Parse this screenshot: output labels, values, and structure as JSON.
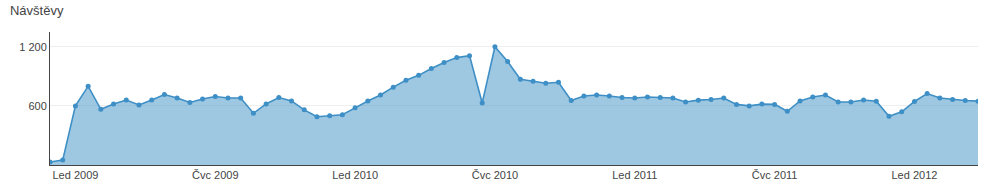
{
  "chart_data": {
    "type": "area",
    "title": "Návštěvy",
    "categories": [
      null,
      null,
      "Led 2009",
      null,
      null,
      null,
      null,
      null,
      null,
      null,
      null,
      null,
      null,
      "Čvc 2009",
      null,
      null,
      null,
      null,
      null,
      null,
      null,
      null,
      null,
      null,
      "Led 2010",
      null,
      null,
      null,
      null,
      null,
      null,
      null,
      null,
      null,
      null,
      "Čvc 2010",
      null,
      null,
      null,
      null,
      null,
      null,
      null,
      null,
      null,
      null,
      "Led 2011",
      null,
      null,
      null,
      null,
      null,
      null,
      null,
      null,
      null,
      null,
      "Čvc 2011",
      null,
      null,
      null,
      null,
      null,
      null,
      null,
      null,
      null,
      null,
      "Led 2012",
      null,
      null,
      null,
      null,
      null
    ],
    "values": [
      30,
      50,
      600,
      800,
      565,
      620,
      660,
      610,
      660,
      715,
      680,
      635,
      670,
      695,
      680,
      680,
      525,
      620,
      685,
      650,
      560,
      490,
      500,
      510,
      580,
      650,
      710,
      790,
      860,
      910,
      980,
      1040,
      1090,
      1110,
      630,
      1200,
      1050,
      870,
      850,
      830,
      840,
      655,
      700,
      710,
      700,
      685,
      680,
      690,
      685,
      680,
      640,
      658,
      665,
      680,
      615,
      600,
      618,
      615,
      545,
      650,
      690,
      710,
      640,
      640,
      660,
      648,
      495,
      540,
      645,
      725,
      680,
      665,
      655,
      648
    ],
    "color": "#3d8fc6",
    "marker": "circle",
    "ylim": [
      0,
      1350
    ],
    "yticks": [
      600,
      {
        "value": 1200,
        "label": "1 200"
      }
    ],
    "grid": true
  }
}
